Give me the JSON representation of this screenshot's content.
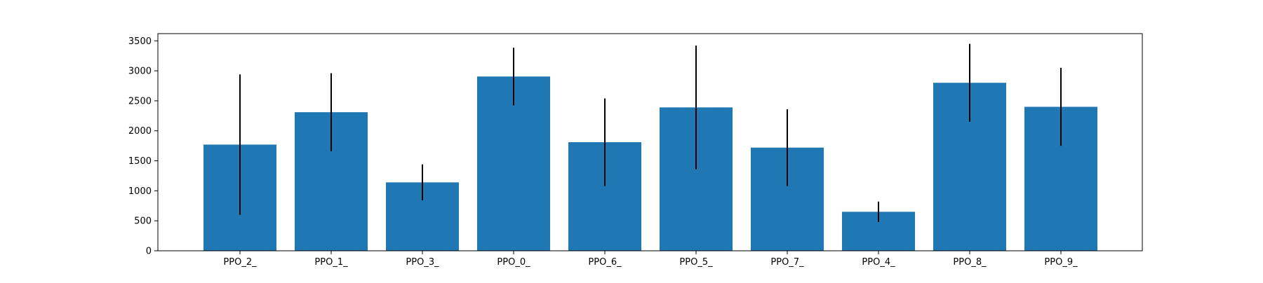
{
  "chart_data": {
    "type": "bar",
    "title": "",
    "xlabel": "",
    "ylabel": "",
    "categories": [
      "PPO_2_",
      "PPO_1_",
      "PPO_3_",
      "PPO_0_",
      "PPO_6_",
      "PPO_5_",
      "PPO_7_",
      "PPO_4_",
      "PPO_8_",
      "PPO_9_"
    ],
    "values": [
      1770,
      2310,
      1140,
      2905,
      1810,
      2390,
      1720,
      650,
      2800,
      2400
    ],
    "errors": [
      1170,
      650,
      300,
      480,
      730,
      1030,
      640,
      170,
      650,
      650
    ],
    "ylim": [
      0,
      3620
    ],
    "yticks": [
      0,
      500,
      1000,
      1500,
      2000,
      2500,
      3000,
      3500
    ],
    "grid": false,
    "colors": {
      "bar": "#1f77b4",
      "error_bar": "#000000",
      "axes": "#000000"
    }
  }
}
